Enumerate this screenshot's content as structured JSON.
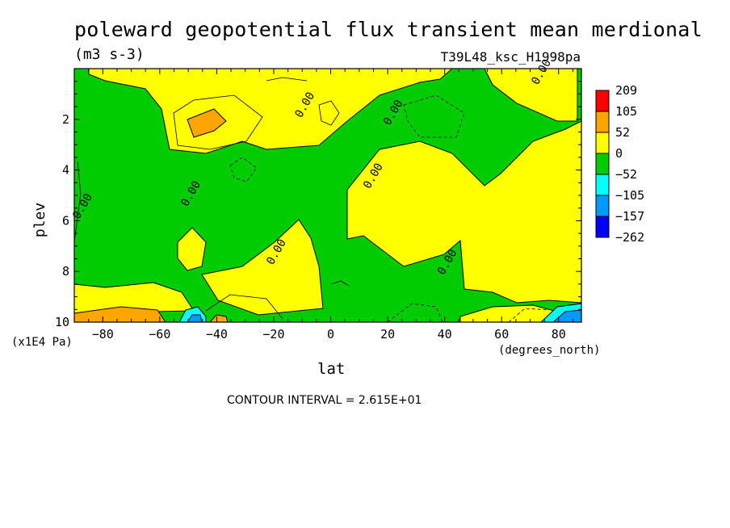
{
  "chart_data": {
    "type": "heatmap",
    "title": "poleward geopotential flux transient mean merdional",
    "units": "(m3 s-3)",
    "run_id": "T39L48_ksc_H1998pa",
    "xlabel": "lat",
    "xunits": "(degrees_north)",
    "ylabel": "plev",
    "yunits": "(x1E4 Pa)",
    "contour_interval_text": "CONTOUR INTERVAL = 2.615E+01",
    "xlim": [
      -90,
      88
    ],
    "ylim": [
      10,
      0
    ],
    "x_ticks": [
      -80,
      -60,
      -40,
      -20,
      0,
      20,
      40,
      60,
      80
    ],
    "y_ticks": [
      2,
      4,
      6,
      8,
      10
    ],
    "contour_label": "0.00",
    "legend": {
      "levels": [
        "209",
        "105",
        "52",
        "0",
        "-52",
        "-105",
        "-157",
        "-262"
      ],
      "colors": [
        "#ff0000",
        "#ffa500",
        "#ffff00",
        "#00cc00",
        "#00ffff",
        "#0099ff",
        "#0000ff"
      ]
    }
  }
}
